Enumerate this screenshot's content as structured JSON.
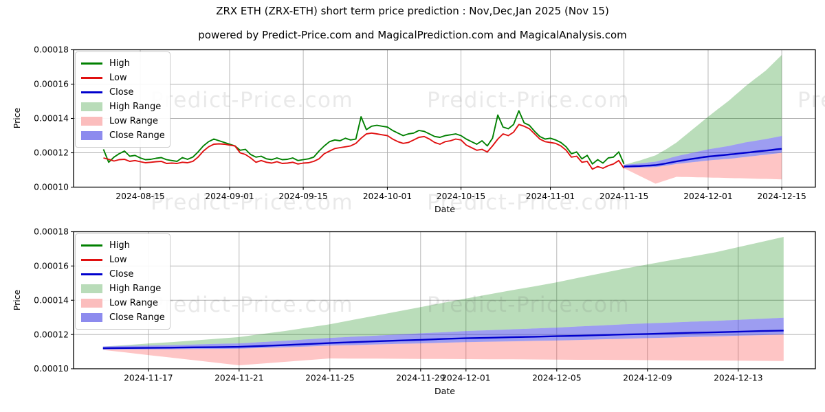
{
  "header": {
    "title": "ZRX ETH (ZRX-ETH) short term price prediction : Nov,Dec,Jan 2025 (Nov 15)",
    "subtitle": "powered by Predict-Price.com and MagicalPrediction.com and MagicalAnalysis.com"
  },
  "watermark": {
    "text": "Predict-Price.com"
  },
  "axes": {
    "price_label": "Price",
    "date_label": "Date"
  },
  "legend": {
    "position": "upper left",
    "items": [
      {
        "label": "High",
        "type": "line",
        "color": "#008000"
      },
      {
        "label": "Low",
        "type": "line",
        "color": "#e01010"
      },
      {
        "label": "Close",
        "type": "line",
        "color": "#0000cd"
      },
      {
        "label": "High Range",
        "type": "patch",
        "color": "#b9dcb9"
      },
      {
        "label": "Low Range",
        "type": "patch",
        "color": "#fbbdbd"
      },
      {
        "label": "Close Range",
        "type": "patch",
        "color": "#8d8bee"
      }
    ]
  },
  "colors": {
    "grid": "#b0b0b0",
    "spine": "#000000",
    "high_line": "#008000",
    "low_line": "#e01010",
    "close_line": "#0000cd",
    "high_fill": "rgba(0,128,0,0.27)",
    "low_fill": "rgba(250,45,45,0.28)",
    "close_fill": "rgba(47,47,226,0.47)"
  },
  "chart_data": {
    "type": "line",
    "grid": true,
    "ylim": [
      0.0001,
      0.00018
    ],
    "y_ticks": [
      "0.00010",
      "0.00012",
      "0.00014",
      "0.00016",
      "0.00018"
    ],
    "top_chart": {
      "x_label": "Date",
      "y_label": "Price",
      "x_ticks": [
        "2024-08-15",
        "2024-09-01",
        "2024-09-15",
        "2024-10-01",
        "2024-10-15",
        "2024-11-01",
        "2024-11-15",
        "2024-12-01",
        "2024-12-15"
      ],
      "historical": {
        "start_date": "2024-08-08",
        "end_date": "2024-11-15",
        "frequency": "daily",
        "high": [
          0.000122,
          0.0001145,
          0.0001175,
          0.0001195,
          0.000121,
          0.000118,
          0.0001185,
          0.000117,
          0.000116,
          0.0001162,
          0.0001168,
          0.0001172,
          0.000116,
          0.0001155,
          0.000115,
          0.0001172,
          0.0001162,
          0.0001175,
          0.0001205,
          0.000124,
          0.0001265,
          0.000128,
          0.000127,
          0.000126,
          0.000125,
          0.000124,
          0.0001215,
          0.000122,
          0.000119,
          0.0001175,
          0.000118,
          0.0001165,
          0.000116,
          0.000117,
          0.000116,
          0.0001162,
          0.000117,
          0.0001155,
          0.000116,
          0.0001165,
          0.0001175,
          0.000121,
          0.000124,
          0.0001265,
          0.0001275,
          0.000127,
          0.0001285,
          0.0001275,
          0.000128,
          0.000141,
          0.0001335,
          0.0001355,
          0.000136,
          0.0001355,
          0.000135,
          0.000133,
          0.0001315,
          0.00013,
          0.000131,
          0.0001315,
          0.000133,
          0.0001325,
          0.000131,
          0.0001295,
          0.000129,
          0.00013,
          0.0001305,
          0.000131,
          0.00013,
          0.000128,
          0.0001265,
          0.000125,
          0.000127,
          0.000124,
          0.0001285,
          0.000142,
          0.000135,
          0.000134,
          0.0001365,
          0.0001445,
          0.0001375,
          0.000136,
          0.0001325,
          0.0001295,
          0.000128,
          0.0001285,
          0.0001275,
          0.000126,
          0.0001235,
          0.0001195,
          0.0001205,
          0.0001165,
          0.0001185,
          0.0001135,
          0.000116,
          0.000114,
          0.000117,
          0.0001175,
          0.0001205,
          0.0001135
        ],
        "low": [
          0.000117,
          0.0001162,
          0.0001152,
          0.000116,
          0.0001162,
          0.000115,
          0.0001155,
          0.0001148,
          0.0001142,
          0.0001145,
          0.0001148,
          0.000115,
          0.0001138,
          0.000114,
          0.0001138,
          0.0001145,
          0.0001142,
          0.000115,
          0.0001175,
          0.000121,
          0.0001235,
          0.000125,
          0.0001252,
          0.000125,
          0.0001245,
          0.000124,
          0.00012,
          0.000119,
          0.000117,
          0.0001145,
          0.0001155,
          0.0001145,
          0.000114,
          0.0001148,
          0.0001138,
          0.000114,
          0.0001145,
          0.0001135,
          0.000114,
          0.0001142,
          0.000115,
          0.0001165,
          0.0001195,
          0.000121,
          0.0001225,
          0.000123,
          0.0001235,
          0.000124,
          0.0001255,
          0.0001285,
          0.000131,
          0.0001315,
          0.000131,
          0.0001305,
          0.00013,
          0.000128,
          0.0001265,
          0.0001255,
          0.000126,
          0.0001275,
          0.000129,
          0.0001295,
          0.000128,
          0.000126,
          0.000125,
          0.0001265,
          0.000127,
          0.000128,
          0.0001275,
          0.0001245,
          0.000123,
          0.0001215,
          0.000122,
          0.0001205,
          0.000124,
          0.000128,
          0.000131,
          0.00013,
          0.000132,
          0.0001365,
          0.0001355,
          0.000134,
          0.000131,
          0.000128,
          0.0001265,
          0.000126,
          0.0001255,
          0.000124,
          0.0001215,
          0.0001175,
          0.000118,
          0.0001145,
          0.000115,
          0.0001105,
          0.000112,
          0.000111,
          0.0001125,
          0.0001135,
          0.0001155,
          0.000111
        ]
      }
    },
    "bottom_chart": {
      "x_label": "Date",
      "y_label": "Price",
      "x_ticks": [
        "2024-11-17",
        "2024-11-21",
        "2024-11-25",
        "2024-11-29",
        "2024-12-01",
        "2024-12-05",
        "2024-12-09",
        "2024-12-13"
      ],
      "series": "prediction"
    },
    "prediction": {
      "start_date": "2024-11-15",
      "end_date": "2024-12-15",
      "frequency": "daily",
      "close": [
        0.000112,
        0.0001121,
        0.0001122,
        0.0001123,
        0.0001125,
        0.0001126,
        0.0001128,
        0.0001133,
        0.0001138,
        0.0001144,
        0.000115,
        0.0001155,
        0.000116,
        0.0001165,
        0.0001169,
        0.0001174,
        0.0001178,
        0.0001181,
        0.0001184,
        0.0001187,
        0.000119,
        0.0001193,
        0.0001197,
        0.00012,
        0.0001203,
        0.0001207,
        0.000121,
        0.0001213,
        0.0001216,
        0.000122,
        0.0001223
      ],
      "close_range_upper": [
        0.000113,
        0.0001133,
        0.0001135,
        0.0001138,
        0.0001141,
        0.0001145,
        0.0001148,
        0.0001156,
        0.0001163,
        0.0001172,
        0.000118,
        0.0001187,
        0.0001193,
        0.00012,
        0.0001207,
        0.0001213,
        0.000122,
        0.0001225,
        0.000123,
        0.0001235,
        0.000124,
        0.0001247,
        0.0001253,
        0.000126,
        0.0001265,
        0.000127,
        0.0001275,
        0.000128,
        0.0001286,
        0.0001292,
        0.0001298
      ],
      "close_range_lower": [
        0.0001112,
        0.0001113,
        0.0001113,
        0.0001114,
        0.0001115,
        0.0001116,
        0.0001117,
        0.0001121,
        0.0001125,
        0.000113,
        0.0001135,
        0.0001138,
        0.0001142,
        0.0001145,
        0.0001148,
        0.0001152,
        0.0001155,
        0.0001158,
        0.000116,
        0.0001163,
        0.0001165,
        0.0001168,
        0.0001172,
        0.0001175,
        0.0001179,
        0.0001182,
        0.0001186,
        0.0001189,
        0.0001193,
        0.0001196,
        0.00012
      ],
      "high_range_upper": [
        0.000113,
        0.0001138,
        0.0001147,
        0.0001155,
        0.0001165,
        0.0001175,
        0.0001185,
        0.0001203,
        0.000122,
        0.000124,
        0.000126,
        0.0001285,
        0.000131,
        0.0001335,
        0.000136,
        0.0001385,
        0.000141,
        0.0001434,
        0.0001458,
        0.0001481,
        0.0001505,
        0.0001532,
        0.0001558,
        0.0001585,
        0.0001609,
        0.0001633,
        0.0001656,
        0.000168,
        0.000171,
        0.000174,
        0.000177
      ],
      "low_range_lower": [
        0.000111,
        0.0001095,
        0.000108,
        0.0001065,
        0.000105,
        0.0001035,
        0.000102,
        0.000103,
        0.000104,
        0.000105,
        0.000106,
        0.0001059,
        0.0001059,
        0.0001058,
        0.0001057,
        0.0001057,
        0.0001056,
        0.0001055,
        0.0001055,
        0.0001054,
        0.0001053,
        0.0001052,
        0.0001052,
        0.0001051,
        0.000105,
        0.0001049,
        0.0001048,
        0.0001048,
        0.0001047,
        0.0001046,
        0.0001045
      ]
    }
  }
}
